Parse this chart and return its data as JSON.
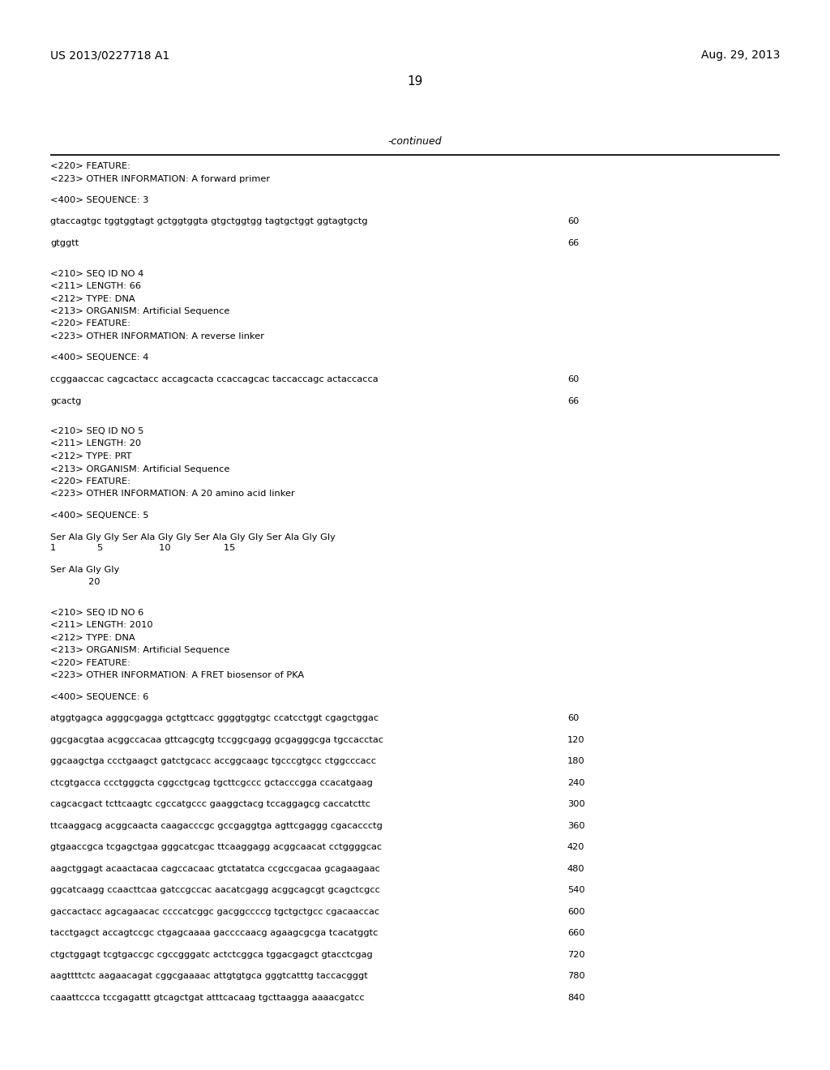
{
  "background_color": "#ffffff",
  "header_left": "US 2013/0227718 A1",
  "header_right": "Aug. 29, 2013",
  "page_number": "19",
  "continued_text": "-continued",
  "content": [
    {
      "type": "line",
      "text": "<220> FEATURE:"
    },
    {
      "type": "line",
      "text": "<223> OTHER INFORMATION: A forward primer"
    },
    {
      "type": "blank"
    },
    {
      "type": "line",
      "text": "<400> SEQUENCE: 3"
    },
    {
      "type": "blank"
    },
    {
      "type": "seq_line",
      "text": "gtaccagtgc tggtggtagt gctggtggta gtgctggtgg tagtgctggt ggtagtgctg",
      "num": "60"
    },
    {
      "type": "blank"
    },
    {
      "type": "seq_line",
      "text": "gtggtt",
      "num": "66"
    },
    {
      "type": "blank"
    },
    {
      "type": "blank"
    },
    {
      "type": "line",
      "text": "<210> SEQ ID NO 4"
    },
    {
      "type": "line",
      "text": "<211> LENGTH: 66"
    },
    {
      "type": "line",
      "text": "<212> TYPE: DNA"
    },
    {
      "type": "line",
      "text": "<213> ORGANISM: Artificial Sequence"
    },
    {
      "type": "line",
      "text": "<220> FEATURE:"
    },
    {
      "type": "line",
      "text": "<223> OTHER INFORMATION: A reverse linker"
    },
    {
      "type": "blank"
    },
    {
      "type": "line",
      "text": "<400> SEQUENCE: 4"
    },
    {
      "type": "blank"
    },
    {
      "type": "seq_line",
      "text": "ccggaaccac cagcactacc accagcacta ccaccagcac taccaccagc actaccacca",
      "num": "60"
    },
    {
      "type": "blank"
    },
    {
      "type": "seq_line",
      "text": "gcactg",
      "num": "66"
    },
    {
      "type": "blank"
    },
    {
      "type": "blank"
    },
    {
      "type": "line",
      "text": "<210> SEQ ID NO 5"
    },
    {
      "type": "line",
      "text": "<211> LENGTH: 20"
    },
    {
      "type": "line",
      "text": "<212> TYPE: PRT"
    },
    {
      "type": "line",
      "text": "<213> ORGANISM: Artificial Sequence"
    },
    {
      "type": "line",
      "text": "<220> FEATURE:"
    },
    {
      "type": "line",
      "text": "<223> OTHER INFORMATION: A 20 amino acid linker"
    },
    {
      "type": "blank"
    },
    {
      "type": "line",
      "text": "<400> SEQUENCE: 5"
    },
    {
      "type": "blank"
    },
    {
      "type": "aa_line",
      "text": "Ser Ala Gly Gly Ser Ala Gly Gly Ser Ala Gly Gly Ser Ala Gly Gly",
      "nums": "1              5                   10                  15"
    },
    {
      "type": "blank"
    },
    {
      "type": "line",
      "text": "Ser Ala Gly Gly"
    },
    {
      "type": "num_line",
      "text": "             20"
    },
    {
      "type": "blank"
    },
    {
      "type": "blank"
    },
    {
      "type": "line",
      "text": "<210> SEQ ID NO 6"
    },
    {
      "type": "line",
      "text": "<211> LENGTH: 2010"
    },
    {
      "type": "line",
      "text": "<212> TYPE: DNA"
    },
    {
      "type": "line",
      "text": "<213> ORGANISM: Artificial Sequence"
    },
    {
      "type": "line",
      "text": "<220> FEATURE:"
    },
    {
      "type": "line",
      "text": "<223> OTHER INFORMATION: A FRET biosensor of PKA"
    },
    {
      "type": "blank"
    },
    {
      "type": "line",
      "text": "<400> SEQUENCE: 6"
    },
    {
      "type": "blank"
    },
    {
      "type": "seq_line",
      "text": "atggtgagca agggcgagga gctgttcacc ggggtggtgc ccatcctggt cgagctggac",
      "num": "60"
    },
    {
      "type": "blank"
    },
    {
      "type": "seq_line",
      "text": "ggcgacgtaa acggccacaa gttcagcgtg tccggcgagg gcgagggcga tgccacctac",
      "num": "120"
    },
    {
      "type": "blank"
    },
    {
      "type": "seq_line",
      "text": "ggcaagctga ccctgaagct gatctgcacc accggcaagc tgcccgtgcc ctggcccacc",
      "num": "180"
    },
    {
      "type": "blank"
    },
    {
      "type": "seq_line",
      "text": "ctcgtgacca ccctgggcta cggcctgcag tgcttcgccc gctacccgga ccacatgaag",
      "num": "240"
    },
    {
      "type": "blank"
    },
    {
      "type": "seq_line",
      "text": "cagcacgact tcttcaagtc cgccatgccc gaaggctacg tccaggagcg caccatcttc",
      "num": "300"
    },
    {
      "type": "blank"
    },
    {
      "type": "seq_line",
      "text": "ttcaaggacg acggcaacta caagacccgc gccgaggtga agttcgaggg cgacaccctg",
      "num": "360"
    },
    {
      "type": "blank"
    },
    {
      "type": "seq_line",
      "text": "gtgaaccgca tcgagctgaa gggcatcgac ttcaaggagg acggcaacat cctggggcac",
      "num": "420"
    },
    {
      "type": "blank"
    },
    {
      "type": "seq_line",
      "text": "aagctggagt acaactacaa cagccacaac gtctatatca ccgccgacaa gcagaagaac",
      "num": "480"
    },
    {
      "type": "blank"
    },
    {
      "type": "seq_line",
      "text": "ggcatcaagg ccaacttcaa gatccgccac aacatcgagg acggcagcgt gcagctcgcc",
      "num": "540"
    },
    {
      "type": "blank"
    },
    {
      "type": "seq_line",
      "text": "gaccactacc agcagaacac ccccatcggc gacggccccg tgctgctgcc cgacaaccac",
      "num": "600"
    },
    {
      "type": "blank"
    },
    {
      "type": "seq_line",
      "text": "tacctgagct accagtccgc ctgagcaaaa gaccccaacg agaagcgcga tcacatggtc",
      "num": "660"
    },
    {
      "type": "blank"
    },
    {
      "type": "seq_line",
      "text": "ctgctggagt tcgtgaccgc cgccgggatc actctcggca tggacgagct gtacctcgag",
      "num": "720"
    },
    {
      "type": "blank"
    },
    {
      "type": "seq_line",
      "text": "aagttttctc aagaacagat cggcgaaaac attgtgtgca gggtcatttg taccacgggt",
      "num": "780"
    },
    {
      "type": "blank"
    },
    {
      "type": "seq_line",
      "text": "caaattccca tccgagattt gtcagctgat atttcacaag tgcttaagga aaaacgatcc",
      "num": "840"
    }
  ]
}
